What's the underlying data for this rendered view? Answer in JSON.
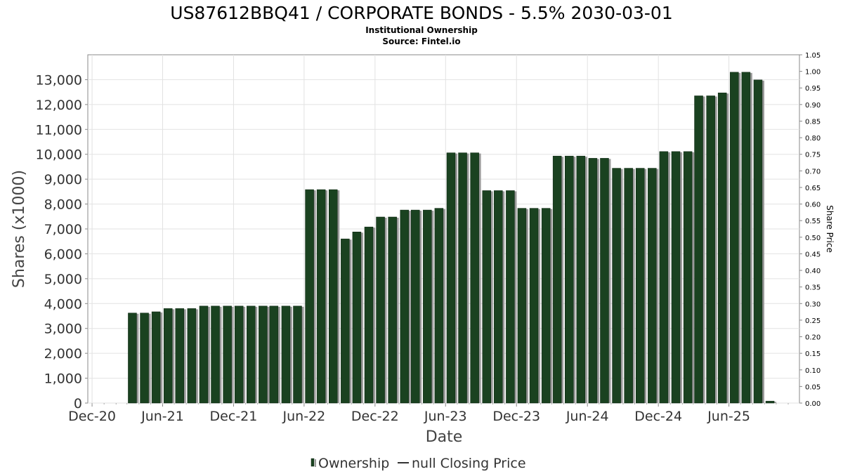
{
  "chart_data": {
    "type": "bar",
    "title": "US87612BBQ41 / CORPORATE BONDS - 5.5% 2030-03-01",
    "subtitle_lines": [
      "Institutional Ownership",
      "Source: Fintel.io"
    ],
    "xlabel": "Date",
    "ylabel": "Shares (x1000)",
    "y2label": "Share Price",
    "ylim": [
      0,
      14000
    ],
    "y2lim": [
      0,
      1.05
    ],
    "yticks": [
      0,
      1000,
      2000,
      3000,
      4000,
      5000,
      6000,
      7000,
      8000,
      9000,
      10000,
      11000,
      12000,
      13000
    ],
    "ytick_labels": [
      "0",
      "1,000",
      "2,000",
      "3,000",
      "4,000",
      "5,000",
      "6,000",
      "7,000",
      "8,000",
      "9,000",
      "10,000",
      "11,000",
      "12,000",
      "13,000"
    ],
    "y2tick_labels": [
      "0.00",
      "0.05",
      "0.10",
      "0.15",
      "0.20",
      "0.25",
      "0.30",
      "0.35",
      "0.40",
      "0.45",
      "0.50",
      "0.55",
      "0.60",
      "0.65",
      "0.70",
      "0.75",
      "0.80",
      "0.85",
      "0.90",
      "0.95",
      "1.00",
      "1.05"
    ],
    "xlim": [
      "2020-11-20",
      "2025-11-30"
    ],
    "xticks": [
      {
        "label": "Dec-20",
        "date": "2020-12-01"
      },
      {
        "label": "Jun-21",
        "date": "2021-06-01"
      },
      {
        "label": "Dec-21",
        "date": "2021-12-01"
      },
      {
        "label": "Jun-22",
        "date": "2022-06-01"
      },
      {
        "label": "Dec-22",
        "date": "2022-12-01"
      },
      {
        "label": "Jun-23",
        "date": "2023-06-01"
      },
      {
        "label": "Dec-23",
        "date": "2023-12-01"
      },
      {
        "label": "Jun-24",
        "date": "2024-06-01"
      },
      {
        "label": "Dec-24",
        "date": "2024-12-01"
      },
      {
        "label": "Jun-25",
        "date": "2025-06-01"
      }
    ],
    "grid": true,
    "legend_placement": "bottom",
    "series": [
      {
        "name": "Ownership",
        "color": "#1a4220",
        "data": [
          {
            "date": "2021-03-15",
            "value": 3620
          },
          {
            "date": "2021-04-15",
            "value": 3620
          },
          {
            "date": "2021-05-15",
            "value": 3670
          },
          {
            "date": "2021-06-15",
            "value": 3800
          },
          {
            "date": "2021-07-15",
            "value": 3800
          },
          {
            "date": "2021-08-15",
            "value": 3800
          },
          {
            "date": "2021-09-15",
            "value": 3900
          },
          {
            "date": "2021-10-15",
            "value": 3900
          },
          {
            "date": "2021-11-15",
            "value": 3900
          },
          {
            "date": "2021-12-15",
            "value": 3900
          },
          {
            "date": "2022-01-15",
            "value": 3900
          },
          {
            "date": "2022-02-15",
            "value": 3900
          },
          {
            "date": "2022-03-15",
            "value": 3900
          },
          {
            "date": "2022-04-15",
            "value": 3900
          },
          {
            "date": "2022-05-15",
            "value": 3900
          },
          {
            "date": "2022-06-15",
            "value": 8580
          },
          {
            "date": "2022-07-15",
            "value": 8580
          },
          {
            "date": "2022-08-15",
            "value": 8580
          },
          {
            "date": "2022-09-15",
            "value": 6600
          },
          {
            "date": "2022-10-15",
            "value": 6880
          },
          {
            "date": "2022-11-15",
            "value": 7080
          },
          {
            "date": "2022-12-15",
            "value": 7480
          },
          {
            "date": "2023-01-15",
            "value": 7480
          },
          {
            "date": "2023-02-15",
            "value": 7760
          },
          {
            "date": "2023-03-15",
            "value": 7760
          },
          {
            "date": "2023-04-15",
            "value": 7760
          },
          {
            "date": "2023-05-15",
            "value": 7830
          },
          {
            "date": "2023-06-15",
            "value": 10060
          },
          {
            "date": "2023-07-15",
            "value": 10060
          },
          {
            "date": "2023-08-15",
            "value": 10060
          },
          {
            "date": "2023-09-15",
            "value": 8540
          },
          {
            "date": "2023-10-15",
            "value": 8540
          },
          {
            "date": "2023-11-15",
            "value": 8540
          },
          {
            "date": "2023-12-15",
            "value": 7830
          },
          {
            "date": "2024-01-15",
            "value": 7830
          },
          {
            "date": "2024-02-15",
            "value": 7830
          },
          {
            "date": "2024-03-15",
            "value": 9930
          },
          {
            "date": "2024-04-15",
            "value": 9930
          },
          {
            "date": "2024-05-15",
            "value": 9930
          },
          {
            "date": "2024-06-15",
            "value": 9840
          },
          {
            "date": "2024-07-15",
            "value": 9840
          },
          {
            "date": "2024-08-15",
            "value": 9440
          },
          {
            "date": "2024-09-15",
            "value": 9440
          },
          {
            "date": "2024-10-15",
            "value": 9440
          },
          {
            "date": "2024-11-15",
            "value": 9440
          },
          {
            "date": "2024-12-15",
            "value": 10110
          },
          {
            "date": "2025-01-15",
            "value": 10110
          },
          {
            "date": "2025-02-15",
            "value": 10110
          },
          {
            "date": "2025-03-15",
            "value": 12350
          },
          {
            "date": "2025-04-15",
            "value": 12350
          },
          {
            "date": "2025-05-15",
            "value": 12470
          },
          {
            "date": "2025-06-15",
            "value": 13300
          },
          {
            "date": "2025-07-15",
            "value": 13300
          },
          {
            "date": "2025-08-15",
            "value": 12990
          },
          {
            "date": "2025-09-15",
            "value": 80
          }
        ]
      },
      {
        "name": "null Closing Price",
        "color": "#333333",
        "data": []
      }
    ]
  }
}
